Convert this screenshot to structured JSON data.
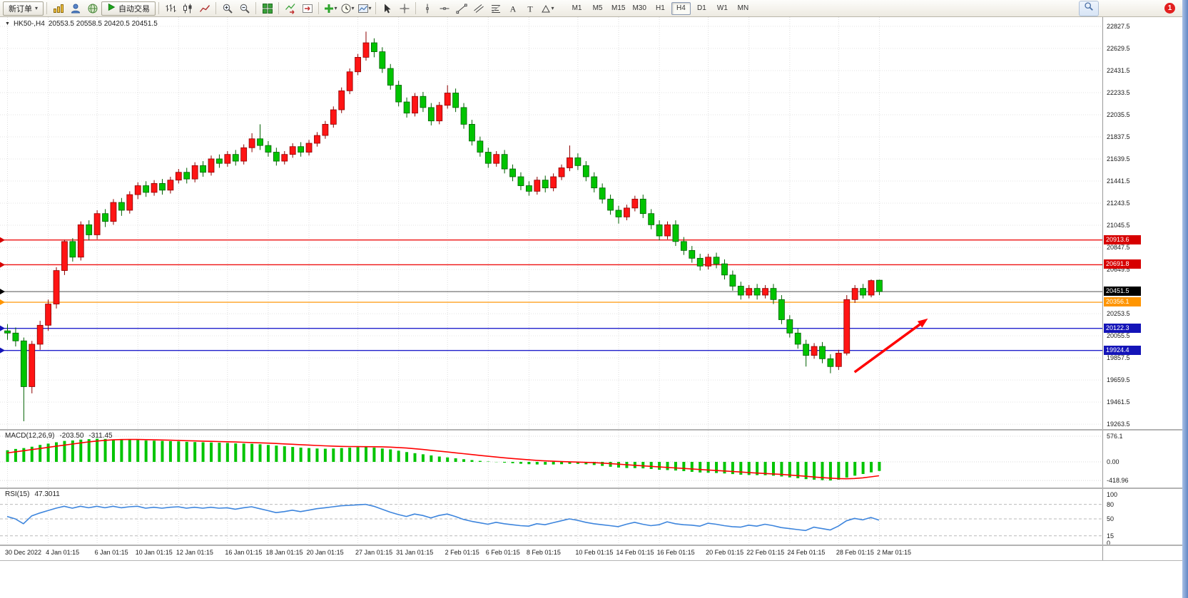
{
  "toolbar": {
    "new_order": {
      "label": "新订单"
    },
    "auto_trading": {
      "label": "自动交易"
    },
    "timeframes": {
      "items": [
        "M1",
        "M5",
        "M15",
        "M30",
        "H1",
        "H4",
        "D1",
        "W1",
        "MN"
      ],
      "active": "H4"
    },
    "notification_badge": "1",
    "icons": [
      "new-chart",
      "profiles",
      "market-watch",
      "auto-trading-play",
      "bar-chart",
      "candlestick-chart",
      "line-chart",
      "zoom-in",
      "zoom-out",
      "tile-windows",
      "cascade-windows",
      "auto-scroll",
      "chart-shift",
      "indicators-add",
      "periods-clock",
      "templates",
      "cursor",
      "crosshair",
      "vertical-line",
      "horizontal-line",
      "trendline",
      "equidistant-channel",
      "fibonacci",
      "text",
      "text-label",
      "shapes",
      "search",
      "notification"
    ]
  },
  "chart": {
    "symbol_header": {
      "symbol": "HK50-,H4",
      "ohlc": "20553.5 20558.5 20420.5 20451.5"
    },
    "price_axis_labels": [
      "22827.5",
      "22629.5",
      "22431.5",
      "22233.5",
      "22035.5",
      "21837.5",
      "21639.5",
      "21441.5",
      "21243.5",
      "21045.5",
      "20847.5",
      "20649.5",
      "20451.5",
      "20253.5",
      "20055.5",
      "19857.5",
      "19659.5",
      "19461.5",
      "19263.5"
    ],
    "price_tags": [
      {
        "value": "20913.6",
        "price": 20913.6,
        "color": "#d70000",
        "line_color": "#ee1111",
        "type": "level"
      },
      {
        "value": "20691.8",
        "price": 20691.8,
        "color": "#d70000",
        "line_color": "#ee1111",
        "type": "level"
      },
      {
        "value": "20451.5",
        "price": 20451.5,
        "color": "#000000",
        "line_color": "#555555",
        "type": "current"
      },
      {
        "value": "20356.1",
        "price": 20356.1,
        "color": "#ff9500",
        "line_color": "#ffa020",
        "type": "level"
      },
      {
        "value": "20122.3",
        "price": 20122.3,
        "color": "#1414b8",
        "line_color": "#2222cc",
        "type": "level"
      },
      {
        "value": "19924.4",
        "price": 19924.4,
        "color": "#1414b8",
        "line_color": "#2222cc",
        "type": "level"
      }
    ],
    "colors": {
      "up": "#ff1414",
      "down": "#00c400",
      "up_border": "#8d0000",
      "down_border": "#006000",
      "macd_hist": "#00c400",
      "macd_signal": "#ff0000",
      "rsi_line": "#3d85dd",
      "arrow": "#ff0000"
    }
  },
  "macd": {
    "label": "MACD(12,26,9)",
    "value_main": "-203.50",
    "value_signal": "-311.45",
    "scale": [
      "576.1",
      "0.00",
      "-418.96"
    ]
  },
  "rsi": {
    "label": "RSI(15)",
    "value": "47.3011",
    "scale": [
      "100",
      "80",
      "50",
      "15",
      "0"
    ]
  },
  "chart_data": [
    {
      "type": "candlestick",
      "title": "HK50-,H4",
      "symbol": "HK50-",
      "timeframe": "H4",
      "ylim": [
        19220,
        22910
      ],
      "time_labels": [
        "30 Dec 2022",
        "4 Jan 01:15",
        "6 Jan 01:15",
        "10 Jan 01:15",
        "12 Jan 01:15",
        "16 Jan 01:15",
        "18 Jan 01:15",
        "20 Jan 01:15",
        "27 Jan 01:15",
        "31 Jan 01:15",
        "2 Feb 01:15",
        "6 Feb 01:15",
        "8 Feb 01:15",
        "10 Feb 01:15",
        "14 Feb 01:15",
        "16 Feb 01:15",
        "20 Feb 01:15",
        "22 Feb 01:15",
        "24 Feb 01:15",
        "28 Feb 01:15",
        "2 Mar 01:15"
      ],
      "time_label_bars": [
        0,
        5,
        11,
        16,
        21,
        27,
        32,
        37,
        43,
        48,
        54,
        59,
        64,
        70,
        75,
        80,
        86,
        91,
        96,
        102,
        107
      ],
      "levels": [
        20913.6,
        20691.8,
        20451.5,
        20356.1,
        20122.3,
        19924.4
      ],
      "current_ohlc": {
        "open": 20553.5,
        "high": 20558.5,
        "low": 20420.5,
        "close": 20451.5
      },
      "ohlc": [
        [
          20100,
          20160,
          20020,
          20080
        ],
        [
          20080,
          20130,
          19960,
          20010
        ],
        [
          20010,
          20040,
          19290,
          19600
        ],
        [
          19600,
          20010,
          19540,
          19980
        ],
        [
          19980,
          20190,
          19930,
          20150
        ],
        [
          20150,
          20380,
          20100,
          20340
        ],
        [
          20340,
          20670,
          20300,
          20640
        ],
        [
          20640,
          20915,
          20600,
          20900
        ],
        [
          20900,
          20930,
          20720,
          20760
        ],
        [
          20760,
          21080,
          20730,
          21050
        ],
        [
          21050,
          21090,
          20910,
          20960
        ],
        [
          20960,
          21180,
          20920,
          21150
        ],
        [
          21150,
          21190,
          21030,
          21080
        ],
        [
          21080,
          21280,
          21050,
          21250
        ],
        [
          21250,
          21290,
          21130,
          21180
        ],
        [
          21180,
          21350,
          21150,
          21320
        ],
        [
          21320,
          21430,
          21280,
          21400
        ],
        [
          21400,
          21440,
          21300,
          21340
        ],
        [
          21340,
          21450,
          21310,
          21420
        ],
        [
          21420,
          21460,
          21320,
          21360
        ],
        [
          21360,
          21480,
          21330,
          21450
        ],
        [
          21450,
          21550,
          21420,
          21520
        ],
        [
          21520,
          21560,
          21420,
          21460
        ],
        [
          21460,
          21610,
          21430,
          21580
        ],
        [
          21580,
          21620,
          21480,
          21520
        ],
        [
          21520,
          21670,
          21490,
          21640
        ],
        [
          21640,
          21680,
          21560,
          21600
        ],
        [
          21600,
          21710,
          21570,
          21680
        ],
        [
          21680,
          21720,
          21580,
          21620
        ],
        [
          21620,
          21770,
          21590,
          21740
        ],
        [
          21740,
          21870,
          21700,
          21820
        ],
        [
          21820,
          21950,
          21720,
          21760
        ],
        [
          21760,
          21800,
          21660,
          21700
        ],
        [
          21700,
          21740,
          21580,
          21620
        ],
        [
          21620,
          21710,
          21590,
          21680
        ],
        [
          21680,
          21780,
          21650,
          21750
        ],
        [
          21750,
          21790,
          21660,
          21700
        ],
        [
          21700,
          21810,
          21670,
          21780
        ],
        [
          21780,
          21880,
          21750,
          21850
        ],
        [
          21850,
          21980,
          21820,
          21950
        ],
        [
          21950,
          22110,
          21920,
          22080
        ],
        [
          22080,
          22280,
          22050,
          22250
        ],
        [
          22250,
          22450,
          22220,
          22420
        ],
        [
          22420,
          22580,
          22390,
          22550
        ],
        [
          22550,
          22780,
          22520,
          22680
        ],
        [
          22680,
          22720,
          22550,
          22600
        ],
        [
          22600,
          22640,
          22410,
          22450
        ],
        [
          22450,
          22490,
          22260,
          22300
        ],
        [
          22300,
          22340,
          22110,
          22150
        ],
        [
          22150,
          22190,
          22010,
          22050
        ],
        [
          22050,
          22230,
          22020,
          22200
        ],
        [
          22200,
          22240,
          22060,
          22100
        ],
        [
          22100,
          22140,
          21940,
          21980
        ],
        [
          21980,
          22150,
          21950,
          22120
        ],
        [
          22120,
          22300,
          22090,
          22230
        ],
        [
          22230,
          22270,
          22060,
          22100
        ],
        [
          22100,
          22140,
          21910,
          21950
        ],
        [
          21950,
          21990,
          21760,
          21800
        ],
        [
          21800,
          21840,
          21660,
          21700
        ],
        [
          21700,
          21740,
          21560,
          21600
        ],
        [
          21600,
          21710,
          21570,
          21680
        ],
        [
          21680,
          21720,
          21510,
          21550
        ],
        [
          21550,
          21590,
          21440,
          21480
        ],
        [
          21480,
          21520,
          21360,
          21400
        ],
        [
          21400,
          21440,
          21310,
          21350
        ],
        [
          21350,
          21480,
          21320,
          21450
        ],
        [
          21450,
          21490,
          21340,
          21380
        ],
        [
          21380,
          21510,
          21350,
          21480
        ],
        [
          21480,
          21590,
          21450,
          21560
        ],
        [
          21560,
          21760,
          21530,
          21650
        ],
        [
          21650,
          21690,
          21540,
          21580
        ],
        [
          21580,
          21620,
          21440,
          21480
        ],
        [
          21480,
          21520,
          21340,
          21380
        ],
        [
          21380,
          21420,
          21240,
          21280
        ],
        [
          21280,
          21320,
          21140,
          21180
        ],
        [
          21180,
          21220,
          21060,
          21120
        ],
        [
          21120,
          21230,
          21090,
          21200
        ],
        [
          21200,
          21310,
          21170,
          21280
        ],
        [
          21280,
          21320,
          21110,
          21150
        ],
        [
          21150,
          21190,
          21010,
          21050
        ],
        [
          21050,
          21090,
          20910,
          20950
        ],
        [
          20950,
          21080,
          20920,
          21050
        ],
        [
          21050,
          21090,
          20860,
          20900
        ],
        [
          20900,
          20940,
          20780,
          20820
        ],
        [
          20820,
          20860,
          20710,
          20750
        ],
        [
          20750,
          20790,
          20640,
          20680
        ],
        [
          20680,
          20790,
          20650,
          20760
        ],
        [
          20760,
          20800,
          20660,
          20700
        ],
        [
          20700,
          20740,
          20560,
          20600
        ],
        [
          20600,
          20640,
          20460,
          20500
        ],
        [
          20500,
          20540,
          20380,
          20420
        ],
        [
          20420,
          20510,
          20390,
          20480
        ],
        [
          20480,
          20520,
          20380,
          20420
        ],
        [
          20420,
          20510,
          20390,
          20480
        ],
        [
          20480,
          20520,
          20340,
          20380
        ],
        [
          20380,
          20420,
          20160,
          20200
        ],
        [
          20200,
          20240,
          20040,
          20080
        ],
        [
          20080,
          20120,
          19940,
          19980
        ],
        [
          19980,
          20020,
          19780,
          19880
        ],
        [
          19880,
          19990,
          19850,
          19960
        ],
        [
          19960,
          20000,
          19810,
          19850
        ],
        [
          19850,
          19890,
          19720,
          19780
        ],
        [
          19780,
          19930,
          19750,
          19900
        ],
        [
          19900,
          20420,
          19880,
          20380
        ],
        [
          20380,
          20510,
          20350,
          20480
        ],
        [
          20480,
          20520,
          20390,
          20420
        ],
        [
          20420,
          20560,
          20400,
          20550
        ],
        [
          20553.5,
          20558.5,
          20420.5,
          20451.5
        ]
      ],
      "annotations": [
        {
          "type": "arrow",
          "color": "#ff0000",
          "from_bar": 104,
          "from_price": 19730,
          "to_bar": 113,
          "to_price": 20210
        }
      ]
    },
    {
      "type": "bar",
      "name": "MACD(12,26,9)",
      "current_main": -203.5,
      "current_signal": -311.45,
      "scale_max": 576.1,
      "scale_min": -418.96,
      "histogram": [
        260,
        290,
        310,
        340,
        380,
        410,
        440,
        470,
        480,
        500,
        510,
        520,
        515,
        505,
        500,
        495,
        490,
        480,
        475,
        470,
        465,
        460,
        450,
        445,
        440,
        435,
        430,
        425,
        415,
        410,
        405,
        395,
        380,
        365,
        350,
        335,
        320,
        310,
        300,
        295,
        300,
        310,
        320,
        328,
        330,
        320,
        300,
        280,
        250,
        220,
        195,
        170,
        145,
        120,
        100,
        80,
        60,
        40,
        22,
        8,
        -5,
        -18,
        -30,
        -42,
        -52,
        -58,
        -62,
        -58,
        -52,
        -45,
        -45,
        -55,
        -70,
        -90,
        -110,
        -128,
        -138,
        -140,
        -146,
        -160,
        -178,
        -184,
        -194,
        -208,
        -224,
        -238,
        -244,
        -250,
        -260,
        -274,
        -288,
        -294,
        -298,
        -300,
        -310,
        -328,
        -348,
        -368,
        -388,
        -400,
        -410,
        -418,
        -400,
        -352,
        -310,
        -272,
        -235,
        -203.5
      ],
      "signal": [
        200,
        225,
        250,
        275,
        300,
        325,
        350,
        375,
        400,
        425,
        448,
        468,
        484,
        495,
        501,
        503,
        502,
        499,
        495,
        491,
        486,
        481,
        476,
        471,
        466,
        461,
        456,
        451,
        446,
        440,
        434,
        428,
        421,
        413,
        404,
        395,
        386,
        377,
        368,
        360,
        353,
        348,
        344,
        342,
        341,
        340,
        337,
        331,
        322,
        310,
        295,
        278,
        260,
        241,
        222,
        203,
        184,
        165,
        146,
        127,
        109,
        92,
        76,
        61,
        47,
        34,
        23,
        14,
        7,
        1,
        -5,
        -11,
        -18,
        -27,
        -38,
        -51,
        -64,
        -77,
        -89,
        -101,
        -113,
        -125,
        -136,
        -147,
        -159,
        -171,
        -183,
        -194,
        -205,
        -216,
        -228,
        -240,
        -251,
        -261,
        -271,
        -282,
        -295,
        -309,
        -324,
        -339,
        -353,
        -365,
        -375,
        -379,
        -373,
        -359,
        -336,
        -311.45
      ]
    },
    {
      "type": "line",
      "name": "RSI(15)",
      "current": 47.3011,
      "levels": [
        80,
        50,
        15
      ],
      "ylim": [
        0,
        100
      ],
      "values": [
        55,
        50,
        40,
        56,
        62,
        67,
        72,
        76,
        72,
        76,
        73,
        76,
        73,
        76,
        73,
        75,
        76,
        72,
        74,
        72,
        74,
        75,
        72,
        74,
        72,
        74,
        72,
        73,
        70,
        73,
        75,
        71,
        67,
        63,
        65,
        68,
        65,
        68,
        71,
        73,
        75,
        77,
        78,
        79,
        80,
        76,
        70,
        64,
        59,
        55,
        60,
        57,
        52,
        57,
        60,
        55,
        49,
        45,
        42,
        39,
        43,
        40,
        38,
        36,
        35,
        40,
        38,
        42,
        46,
        50,
        47,
        43,
        40,
        38,
        36,
        34,
        39,
        43,
        39,
        36,
        38,
        44,
        40,
        38,
        37,
        35,
        41,
        39,
        36,
        34,
        33,
        37,
        35,
        39,
        36,
        32,
        30,
        28,
        26,
        33,
        30,
        27,
        35,
        46,
        51,
        48,
        53,
        47.3
      ]
    }
  ]
}
